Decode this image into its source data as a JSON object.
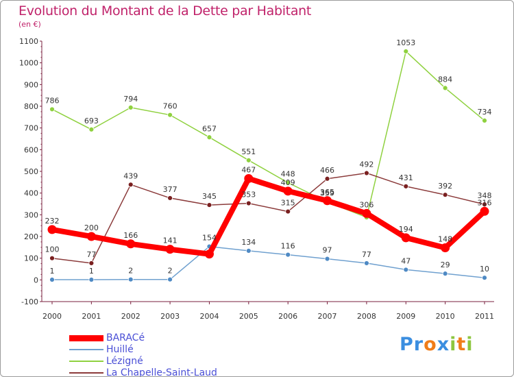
{
  "title": "Evolution du Montant de la Dette par Habitant",
  "subtitle": "(en €)",
  "logo": {
    "text": "Proxiti",
    "letters": [
      {
        "ch": "P",
        "color": "#3b8ee0"
      },
      {
        "ch": "r",
        "color": "#3b8ee0"
      },
      {
        "ch": "o",
        "color": "#f07d1a"
      },
      {
        "ch": "x",
        "color": "#3b8ee0"
      },
      {
        "ch": "i",
        "color": "#8dc63f"
      },
      {
        "ch": "t",
        "color": "#f07d1a"
      },
      {
        "ch": "i",
        "color": "#8dc63f"
      }
    ]
  },
  "chart_data": {
    "type": "line",
    "x": [
      2000,
      2001,
      2002,
      2003,
      2004,
      2005,
      2006,
      2007,
      2008,
      2009,
      2010,
      2011
    ],
    "ylim": [
      -100,
      1100
    ],
    "yticks": [
      -100,
      0,
      100,
      200,
      300,
      400,
      500,
      600,
      700,
      800,
      900,
      1000,
      1100
    ],
    "grid": false,
    "legend_position": "bottom-left",
    "series": [
      {
        "name": "Lézigné",
        "color": "#8fd13f",
        "marker": "#8fd13f",
        "width": 1.5,
        "radius": 3.5,
        "values": [
          786,
          693,
          794,
          760,
          657,
          551,
          448,
          359,
          288,
          1053,
          884,
          734
        ]
      },
      {
        "name": "La Chapelle-Saint-Laud",
        "color": "#8b3a3a",
        "marker": "#7a2020",
        "width": 1.5,
        "radius": 3.5,
        "values": [
          100,
          77,
          439,
          377,
          345,
          353,
          315,
          466,
          492,
          431,
          392,
          348
        ]
      },
      {
        "name": "Huillé",
        "color": "#6fa0cf",
        "marker": "#4f8ac4",
        "width": 1.5,
        "radius": 3.5,
        "values": [
          1,
          1,
          2,
          2,
          154,
          134,
          116,
          97,
          77,
          47,
          29,
          10
        ]
      },
      {
        "name": "BARACé",
        "color": "#ff0000",
        "marker": "#ff0000",
        "width": 8,
        "radius": 6.5,
        "values": [
          232,
          200,
          166,
          141,
          119,
          467,
          409,
          365,
          306,
          194,
          148,
          316
        ]
      }
    ],
    "labels_shown": {
      "Lézigné": [
        "786",
        "693",
        "794",
        "760",
        "657",
        "551",
        "448",
        "359",
        "",
        "1053",
        "884",
        "734"
      ],
      "La Chapelle-Saint-Laud": [
        "100",
        "77",
        "439",
        "377",
        "345",
        "353",
        "315",
        "466",
        "492",
        "431",
        "392",
        "348"
      ],
      "Huillé": [
        "1",
        "1",
        "2",
        "2",
        "154",
        "134",
        "116",
        "97",
        "77",
        "47",
        "29",
        "10"
      ],
      "BARACé": [
        "232",
        "200",
        "166",
        "141",
        "",
        "467",
        "409",
        "365",
        "306",
        "194",
        "148",
        "316"
      ]
    }
  }
}
